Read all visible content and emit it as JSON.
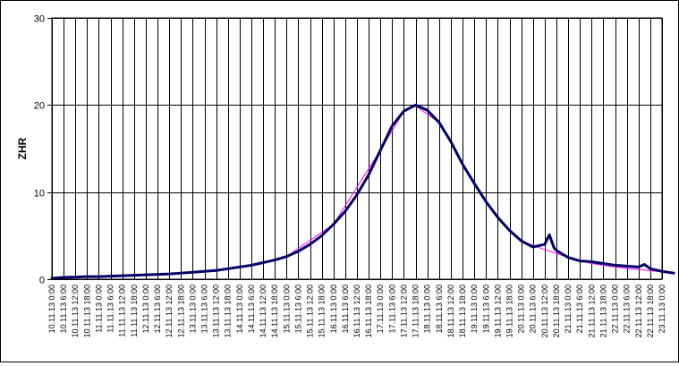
{
  "chart_data": {
    "type": "line",
    "title": "",
    "xlabel": "",
    "ylabel": "ZHR",
    "ylim": [
      0,
      30
    ],
    "yticks": [
      0,
      10,
      20,
      30
    ],
    "grid": true,
    "legend": "none",
    "x_tick_labels": [
      "10.11.13 0:00",
      "10.11.13 6:00",
      "10.11.13 12:00",
      "10.11.13 18:00",
      "11.11.13 0:00",
      "11.11.13 6:00",
      "11.11.13 12:00",
      "11.11.13 18:00",
      "12.11.13 0:00",
      "12.11.13 6:00",
      "12.11.13 12:00",
      "12.11.13 18:00",
      "13.11.13 0:00",
      "13.11.13 6:00",
      "13.11.13 12:00",
      "13.11.13 18:00",
      "14.11.13 0:00",
      "14.11.13 6:00",
      "14.11.13 12:00",
      "14.11.13 18:00",
      "15.11.13 0:00",
      "15.11.13 6:00",
      "15.11.13 12:00",
      "15.11.13 18:00",
      "16.11.13 0:00",
      "16.11.13 6:00",
      "16.11.13 12:00",
      "16.11.13 18:00",
      "17.11.13 0:00",
      "17.11.13 6:00",
      "17.11.13 12:00",
      "17.11.13 18:00",
      "18.11.13 0:00",
      "18.11.13 6:00",
      "18.11.13 12:00",
      "18.11.13 18:00",
      "19.11.13 0:00",
      "19.11.13 6:00",
      "19.11.13 12:00",
      "19.11.13 18:00",
      "20.11.13 0:00",
      "20.11.13 6:00",
      "20.11.13 12:00",
      "20.11.13 18:00",
      "21.11.13 0:00",
      "21.11.13 6:00",
      "21.11.13 12:00",
      "21.11.13 18:00",
      "22.11.13 0:00",
      "22.11.13 6:00",
      "22.11.13 12:00",
      "22.11.13 18:00",
      "23.11.13 0:00"
    ],
    "series": [
      {
        "color": "#000066",
        "points": [
          [
            0,
            0.1
          ],
          [
            1,
            0.2
          ],
          [
            2,
            0.25
          ],
          [
            3,
            0.3
          ],
          [
            4,
            0.3
          ],
          [
            5,
            0.35
          ],
          [
            6,
            0.4
          ],
          [
            7,
            0.45
          ],
          [
            8,
            0.5
          ],
          [
            9,
            0.55
          ],
          [
            10,
            0.6
          ],
          [
            11,
            0.7
          ],
          [
            12,
            0.8
          ],
          [
            13,
            0.9
          ],
          [
            14,
            1.0
          ],
          [
            15,
            1.2
          ],
          [
            16,
            1.4
          ],
          [
            17,
            1.6
          ],
          [
            18,
            1.9
          ],
          [
            19,
            2.2
          ],
          [
            20,
            2.6
          ],
          [
            21,
            3.2
          ],
          [
            22,
            4.0
          ],
          [
            23,
            5.0
          ],
          [
            24,
            6.3
          ],
          [
            25,
            7.8
          ],
          [
            26,
            9.7
          ],
          [
            27,
            12.0
          ],
          [
            28,
            14.8
          ],
          [
            29,
            17.6
          ],
          [
            30,
            19.3
          ],
          [
            31,
            20.0
          ],
          [
            32,
            19.4
          ],
          [
            33,
            18.0
          ],
          [
            34,
            15.8
          ],
          [
            35,
            13.2
          ],
          [
            36,
            11.0
          ],
          [
            37,
            8.9
          ],
          [
            38,
            7.1
          ],
          [
            39,
            5.6
          ],
          [
            40,
            4.4
          ],
          [
            41,
            3.7
          ],
          [
            42,
            4.0
          ],
          [
            42.4,
            5.1
          ],
          [
            42.8,
            3.6
          ],
          [
            43,
            3.3
          ],
          [
            44,
            2.5
          ],
          [
            45,
            2.1
          ],
          [
            46,
            2.0
          ],
          [
            47,
            1.8
          ],
          [
            48,
            1.6
          ],
          [
            49,
            1.5
          ],
          [
            50,
            1.4
          ],
          [
            50.5,
            1.7
          ],
          [
            51,
            1.2
          ],
          [
            52,
            0.9
          ],
          [
            53,
            0.7
          ]
        ]
      },
      {
        "color": "#ff00ff",
        "points": [
          [
            0,
            0.1
          ],
          [
            4,
            0.3
          ],
          [
            8,
            0.5
          ],
          [
            12,
            0.8
          ],
          [
            16,
            1.4
          ],
          [
            20,
            2.6
          ],
          [
            24,
            6.3
          ],
          [
            28,
            14.8
          ],
          [
            30,
            19.3
          ],
          [
            31,
            19.9
          ],
          [
            33,
            18.0
          ],
          [
            36,
            11.0
          ],
          [
            38,
            7.1
          ],
          [
            40,
            4.4
          ],
          [
            42,
            3.4
          ],
          [
            44,
            2.5
          ],
          [
            46,
            1.8
          ],
          [
            48,
            1.4
          ],
          [
            50,
            1.1
          ],
          [
            52,
            0.85
          ],
          [
            53,
            0.7
          ]
        ]
      }
    ]
  }
}
